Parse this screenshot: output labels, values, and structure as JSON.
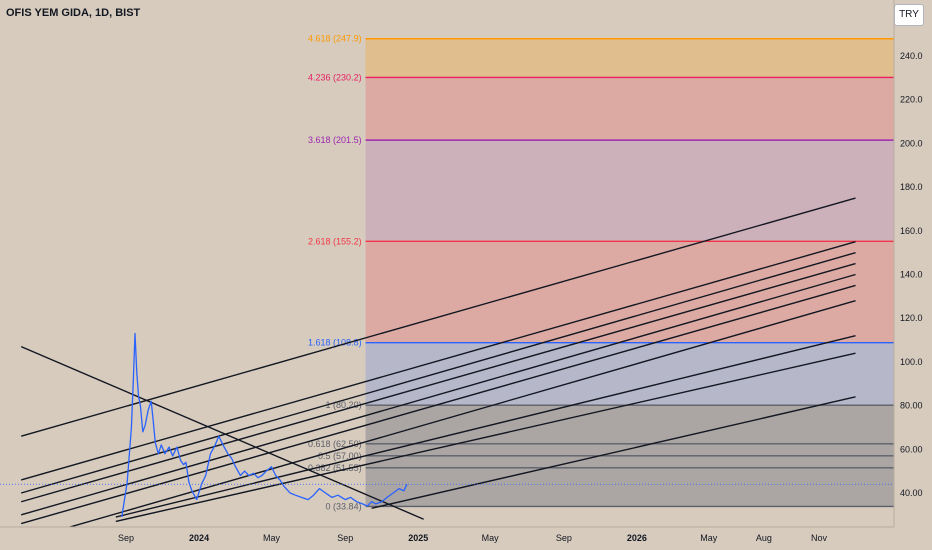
{
  "header": {
    "title": "OFIS YEM GIDA, 1D, BIST",
    "currency": "TRY"
  },
  "chart_data": {
    "type": "line",
    "symbol": "OFIS YEM GIDA",
    "interval": "1D",
    "exchange": "BIST",
    "currency": "TRY",
    "y_ticks": [
      40,
      60,
      80,
      100,
      120,
      140,
      160,
      180,
      200,
      220,
      240
    ],
    "y_tick_labels": [
      "40.00",
      "60.00",
      "80.00",
      "100.0",
      "120.0",
      "140.0",
      "160.0",
      "180.0",
      "200.0",
      "220.0",
      "240.0"
    ],
    "x_ticks": [
      {
        "date": "2023-09-01",
        "label": "Sep",
        "bold": false
      },
      {
        "date": "2024-01-01",
        "label": "2024",
        "bold": true
      },
      {
        "date": "2024-05-01",
        "label": "May",
        "bold": false
      },
      {
        "date": "2024-09-01",
        "label": "Sep",
        "bold": false
      },
      {
        "date": "2025-01-01",
        "label": "2025",
        "bold": true
      },
      {
        "date": "2025-05-01",
        "label": "May",
        "bold": false
      },
      {
        "date": "2025-09-01",
        "label": "Sep",
        "bold": false
      },
      {
        "date": "2026-01-01",
        "label": "2026",
        "bold": true
      },
      {
        "date": "2026-05-01",
        "label": "May",
        "bold": false
      },
      {
        "date": "2026-08-01",
        "label": "Aug",
        "bold": false
      },
      {
        "date": "2026-11-01",
        "label": "Nov",
        "bold": false
      }
    ],
    "series": [
      {
        "color": "#2962ff",
        "points": [
          [
            "2023-08-25",
            29
          ],
          [
            "2023-09-03",
            45
          ],
          [
            "2023-09-10",
            70
          ],
          [
            "2023-09-13",
            90
          ],
          [
            "2023-09-16",
            113
          ],
          [
            "2023-09-19",
            95
          ],
          [
            "2023-09-22",
            84
          ],
          [
            "2023-09-25",
            80
          ],
          [
            "2023-09-29",
            68
          ],
          [
            "2023-10-03",
            71
          ],
          [
            "2023-10-08",
            78
          ],
          [
            "2023-10-13",
            82
          ],
          [
            "2023-10-16",
            74
          ],
          [
            "2023-10-20",
            63
          ],
          [
            "2023-10-25",
            58
          ],
          [
            "2023-10-30",
            62
          ],
          [
            "2023-11-05",
            58
          ],
          [
            "2023-11-12",
            61
          ],
          [
            "2023-11-18",
            57
          ],
          [
            "2023-11-25",
            61
          ],
          [
            "2023-12-01",
            55
          ],
          [
            "2023-12-06",
            53
          ],
          [
            "2023-12-10",
            54
          ],
          [
            "2023-12-15",
            45
          ],
          [
            "2023-12-20",
            41
          ],
          [
            "2023-12-28",
            37
          ],
          [
            "2024-01-05",
            44
          ],
          [
            "2024-01-12",
            48
          ],
          [
            "2024-01-20",
            58
          ],
          [
            "2024-01-28",
            62
          ],
          [
            "2024-02-03",
            66
          ],
          [
            "2024-02-10",
            62
          ],
          [
            "2024-02-18",
            58
          ],
          [
            "2024-02-24",
            56
          ],
          [
            "2024-03-02",
            52
          ],
          [
            "2024-03-10",
            48
          ],
          [
            "2024-03-17",
            50
          ],
          [
            "2024-03-24",
            48
          ],
          [
            "2024-04-01",
            49
          ],
          [
            "2024-04-08",
            47
          ],
          [
            "2024-04-15",
            48
          ],
          [
            "2024-04-22",
            50
          ],
          [
            "2024-05-01",
            52
          ],
          [
            "2024-05-08",
            48
          ],
          [
            "2024-05-15",
            46
          ],
          [
            "2024-05-22",
            43
          ],
          [
            "2024-06-01",
            40
          ],
          [
            "2024-06-10",
            39
          ],
          [
            "2024-06-20",
            38
          ],
          [
            "2024-07-01",
            37
          ],
          [
            "2024-07-10",
            39
          ],
          [
            "2024-07-20",
            42
          ],
          [
            "2024-07-30",
            40
          ],
          [
            "2024-08-10",
            38
          ],
          [
            "2024-08-20",
            39
          ],
          [
            "2024-09-01",
            37
          ],
          [
            "2024-09-10",
            38
          ],
          [
            "2024-09-20",
            36
          ],
          [
            "2024-09-30",
            35
          ],
          [
            "2024-10-08",
            34
          ],
          [
            "2024-10-15",
            36
          ],
          [
            "2024-10-22",
            35
          ],
          [
            "2024-11-01",
            36
          ],
          [
            "2024-11-10",
            38
          ],
          [
            "2024-11-20",
            40
          ],
          [
            "2024-11-30",
            42
          ],
          [
            "2024-12-08",
            41
          ],
          [
            "2024-12-13",
            44
          ]
        ]
      }
    ],
    "fibonacci_extension": {
      "start_date": "2024-10-05",
      "levels": [
        {
          "ratio": "0",
          "value": 33.84,
          "label": "0 (33.84)",
          "color": "#5d606b"
        },
        {
          "ratio": "0.382",
          "value": 51.55,
          "label": "0.382 (51.55)",
          "color": "#5d606b"
        },
        {
          "ratio": "0.5",
          "value": 57.0,
          "label": "0.5 (57.00)",
          "color": "#5d606b"
        },
        {
          "ratio": "0.618",
          "value": 62.5,
          "label": "0.618 (62.50)",
          "color": "#5d606b"
        },
        {
          "ratio": "1",
          "value": 80.2,
          "label": "1 (80.20)",
          "color": "#5d606b"
        },
        {
          "ratio": "1.618",
          "value": 108.8,
          "label": "1.618 (108.8)",
          "color": "#2962ff"
        },
        {
          "ratio": "2.618",
          "value": 155.2,
          "label": "2.618 (155.2)",
          "color": "#f23645"
        },
        {
          "ratio": "3.618",
          "value": 201.5,
          "label": "3.618 (201.5)",
          "color": "#9c27b0"
        },
        {
          "ratio": "4.236",
          "value": 230.2,
          "label": "4.236 (230.2)",
          "color": "#e91e63"
        },
        {
          "ratio": "4.618",
          "value": 247.9,
          "label": "4.618 (247.9)",
          "color": "#ff9800"
        }
      ],
      "zones": [
        {
          "from": 33.84,
          "to": 80.2,
          "color": "#787b86",
          "opacity": 0.45
        },
        {
          "from": 80.2,
          "to": 108.8,
          "color": "#2962ff",
          "opacity": 0.18
        },
        {
          "from": 108.8,
          "to": 155.2,
          "color": "#f23645",
          "opacity": 0.22
        },
        {
          "from": 155.2,
          "to": 201.5,
          "color": "#9c27b0",
          "opacity": 0.16
        },
        {
          "from": 201.5,
          "to": 230.2,
          "color": "#f23645",
          "opacity": 0.22
        },
        {
          "from": 230.2,
          "to": 247.9,
          "color": "#ff9800",
          "opacity": 0.25
        }
      ]
    },
    "trendlines": [
      {
        "from": [
          "2023-03-10",
          66
        ],
        "to": [
          "2027-01-01",
          175
        ]
      },
      {
        "from": [
          "2023-03-10",
          46
        ],
        "to": [
          "2027-01-01",
          155
        ]
      },
      {
        "from": [
          "2023-03-10",
          40
        ],
        "to": [
          "2027-01-01",
          150
        ]
      },
      {
        "from": [
          "2023-03-10",
          36
        ],
        "to": [
          "2027-01-01",
          145
        ]
      },
      {
        "from": [
          "2023-03-10",
          30
        ],
        "to": [
          "2027-01-01",
          140
        ]
      },
      {
        "from": [
          "2023-03-10",
          26
        ],
        "to": [
          "2027-01-01",
          135
        ]
      },
      {
        "from": [
          "2023-03-10",
          18
        ],
        "to": [
          "2027-01-01",
          128
        ]
      },
      {
        "from": [
          "2023-08-15",
          29
        ],
        "to": [
          "2027-01-01",
          112
        ]
      },
      {
        "from": [
          "2023-08-15",
          27
        ],
        "to": [
          "2027-01-01",
          104
        ]
      },
      {
        "from": [
          "2024-10-15",
          33
        ],
        "to": [
          "2027-01-01",
          84
        ]
      },
      {
        "from": [
          "2023-03-10",
          107
        ],
        "to": [
          "2025-01-10",
          28
        ]
      }
    ],
    "current_price": 44
  }
}
